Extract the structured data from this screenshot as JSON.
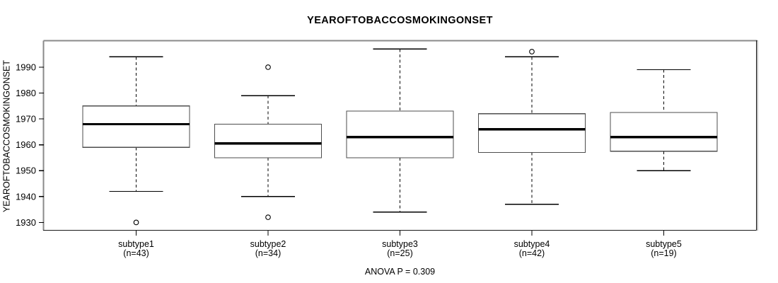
{
  "chart_data": {
    "type": "boxplot",
    "title": "YEAROFTOBACCOSMOKINGONSET",
    "ylabel": "YEAROFTOBACCOSMOKINGONSET",
    "footnote": "ANOVA P = 0.309",
    "grid": false,
    "legend": "none",
    "ylim": [
      1927.1,
      2000.1
    ],
    "yticks": [
      1930,
      1940,
      1950,
      1960,
      1970,
      1980,
      1990
    ],
    "groups": [
      {
        "label": "subtype1",
        "n_label": "(n=43)",
        "n": 43,
        "whisker_low": 1942,
        "q1": 1959,
        "median": 1968,
        "q3": 1975,
        "whisker_high": 1994,
        "outliers": [
          1930
        ]
      },
      {
        "label": "subtype2",
        "n_label": "(n=34)",
        "n": 34,
        "whisker_low": 1940,
        "q1": 1955,
        "median": 1960.5,
        "q3": 1968,
        "whisker_high": 1979,
        "outliers": [
          1990,
          1932
        ]
      },
      {
        "label": "subtype3",
        "n_label": "(n=25)",
        "n": 25,
        "whisker_low": 1934,
        "q1": 1955,
        "median": 1963,
        "q3": 1973,
        "whisker_high": 1997,
        "outliers": []
      },
      {
        "label": "subtype4",
        "n_label": "(n=42)",
        "n": 42,
        "whisker_low": 1937,
        "q1": 1957,
        "median": 1966,
        "q3": 1972,
        "whisker_high": 1994,
        "outliers": [
          1996
        ]
      },
      {
        "label": "subtype5",
        "n_label": "(n=19)",
        "n": 19,
        "whisker_low": 1950,
        "q1": 1957.5,
        "median": 1963,
        "q3": 1972.5,
        "whisker_high": 1989,
        "outliers": []
      }
    ],
    "colors": {
      "line": "#000000",
      "box_border": "#4d4d4d",
      "box_fill": "#ffffff",
      "frame_light": "#8a8a8a",
      "frame_dark": "#1a1a1a",
      "background": "#ffffff"
    }
  }
}
